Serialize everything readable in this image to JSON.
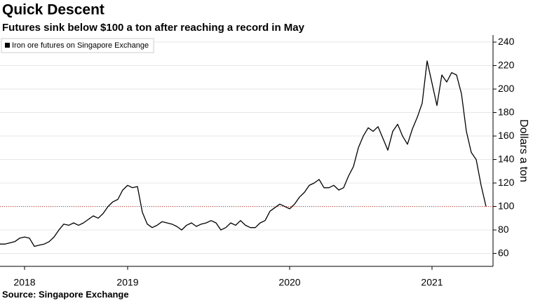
{
  "chart_data": {
    "type": "line",
    "title": "Quick Descent",
    "subtitle": "Futures sink below $100 a ton after reaching a record in May",
    "y_label": "Dollars a ton",
    "source": "Source: Singapore Exchange",
    "legend": "top-left",
    "grid": true,
    "categories": [
      null,
      null,
      null,
      null,
      null,
      "2018",
      null,
      null,
      null,
      null,
      null,
      null,
      null,
      null,
      null,
      null,
      null,
      null,
      null,
      null,
      null,
      null,
      null,
      null,
      null,
      null,
      "2019",
      null,
      null,
      null,
      null,
      null,
      null,
      null,
      null,
      null,
      null,
      null,
      null,
      null,
      null,
      null,
      null,
      null,
      null,
      null,
      null,
      null,
      null,
      null,
      null,
      null,
      null,
      null,
      null,
      null,
      null,
      null,
      null,
      "2020",
      null,
      null,
      null,
      null,
      null,
      null,
      null,
      null,
      null,
      null,
      null,
      null,
      null,
      null,
      null,
      null,
      null,
      null,
      null,
      null,
      null,
      null,
      null,
      null,
      null,
      null,
      null,
      null,
      "2021",
      null,
      null,
      null,
      null,
      null,
      null,
      null,
      null,
      null,
      null,
      null
    ],
    "series": [
      {
        "name": "Iron ore futures on Singapore Exchange",
        "color": "#000000",
        "values": [
          68,
          68,
          69,
          70,
          73,
          74,
          73,
          66,
          67,
          68,
          70,
          74,
          80,
          85,
          84,
          86,
          84,
          86,
          89,
          92,
          90,
          94,
          100,
          104,
          106,
          114,
          118,
          116,
          117,
          95,
          85,
          82,
          84,
          87,
          86,
          85,
          83,
          80,
          84,
          86,
          83,
          85,
          86,
          88,
          86,
          80,
          82,
          86,
          84,
          88,
          84,
          82,
          82,
          86,
          88,
          96,
          99,
          102,
          100,
          98,
          102,
          108,
          112,
          118,
          120,
          123,
          116,
          116,
          118,
          114,
          116,
          126,
          134,
          150,
          160,
          167,
          164,
          168,
          158,
          148,
          164,
          170,
          160,
          153,
          166,
          176,
          188,
          224,
          205,
          186,
          212,
          206,
          214,
          212,
          196,
          164,
          146,
          140,
          118,
          100
        ]
      }
    ],
    "reference_line": {
      "value": 100,
      "color": "#c0392b"
    },
    "ylim": [
      49,
      246
    ],
    "yticks": [
      60,
      80,
      100,
      120,
      140,
      160,
      180,
      200,
      220,
      240
    ]
  }
}
